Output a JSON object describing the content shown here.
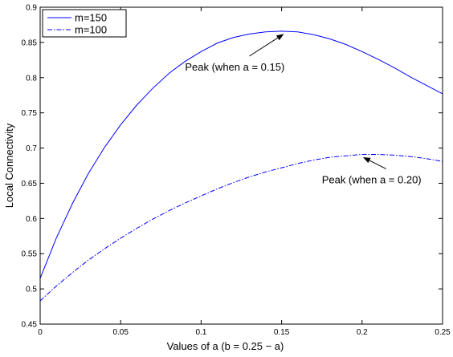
{
  "chart_data": {
    "type": "line",
    "xlabel": "Values of a  (b = 0.25 − a)",
    "ylabel": "Local Connectivity",
    "xlim": [
      0,
      0.25
    ],
    "ylim": [
      0.45,
      0.9
    ],
    "xticks": [
      0,
      0.05,
      0.1,
      0.15,
      0.2,
      0.25
    ],
    "xtick_labels": [
      "0",
      "0.05",
      "0.1",
      "0.15",
      "0.2",
      "0.25"
    ],
    "yticks": [
      0.45,
      0.5,
      0.55,
      0.6,
      0.65,
      0.7,
      0.75,
      0.8,
      0.85,
      0.9
    ],
    "ytick_labels": [
      "0.45",
      "0.5",
      "0.55",
      "0.6",
      "0.65",
      "0.7",
      "0.75",
      "0.8",
      "0.85",
      "0.9"
    ],
    "grid": false,
    "legend_position": "top-left",
    "series": [
      {
        "name": "m=150",
        "style": "solid",
        "color": "#0000ff",
        "x": [
          0,
          0.01,
          0.02,
          0.03,
          0.04,
          0.05,
          0.06,
          0.07,
          0.08,
          0.09,
          0.1,
          0.11,
          0.12,
          0.13,
          0.14,
          0.15,
          0.16,
          0.17,
          0.18,
          0.19,
          0.2,
          0.21,
          0.22,
          0.23,
          0.24,
          0.25
        ],
        "y": [
          0.515,
          0.572,
          0.621,
          0.664,
          0.701,
          0.733,
          0.761,
          0.785,
          0.806,
          0.823,
          0.837,
          0.849,
          0.857,
          0.862,
          0.865,
          0.866,
          0.865,
          0.861,
          0.855,
          0.847,
          0.837,
          0.826,
          0.814,
          0.801,
          0.789,
          0.777
        ]
      },
      {
        "name": "m=100",
        "style": "dashdot",
        "color": "#0000ff",
        "x": [
          0,
          0.01,
          0.02,
          0.03,
          0.04,
          0.05,
          0.06,
          0.07,
          0.08,
          0.09,
          0.1,
          0.11,
          0.12,
          0.13,
          0.14,
          0.15,
          0.16,
          0.17,
          0.18,
          0.19,
          0.2,
          0.21,
          0.22,
          0.23,
          0.24,
          0.25
        ],
        "y": [
          0.483,
          0.504,
          0.523,
          0.541,
          0.557,
          0.572,
          0.586,
          0.599,
          0.611,
          0.622,
          0.632,
          0.642,
          0.651,
          0.659,
          0.666,
          0.672,
          0.678,
          0.683,
          0.687,
          0.689,
          0.691,
          0.691,
          0.69,
          0.688,
          0.685,
          0.681
        ]
      }
    ],
    "annotations": [
      {
        "text": "Peak (when a = 0.15)",
        "point": [
          0.15,
          0.866
        ],
        "label_at": [
          0.09,
          0.81
        ]
      },
      {
        "text": "Peak (when a = 0.20)",
        "point": [
          0.2,
          0.691
        ],
        "label_at": [
          0.175,
          0.65
        ]
      }
    ]
  }
}
